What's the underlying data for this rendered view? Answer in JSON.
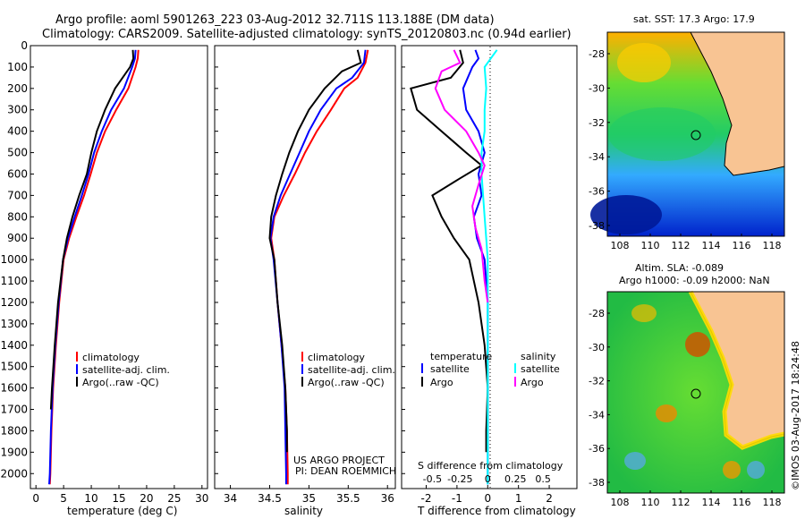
{
  "title": {
    "line1": "Argo profile: aoml 5901263_223 03-Aug-2012 32.711S 113.188E (DM data)",
    "line2": "Climatology: CARS2009. Satellite-adjusted climatology: synTS_20120803.nc (0.94d earlier)"
  },
  "credit": "©IMOS 03-Aug-2017 18:24:48",
  "colors": {
    "climatology": "#ff0000",
    "satellite": "#0000ff",
    "argo": "#000000",
    "salinity_satellite": "#00ffff",
    "salinity_argo": "#ff00ff"
  },
  "chart_data": [
    {
      "type": "line",
      "id": "temperature",
      "xlabel": "temperature (deg C)",
      "xlim": [
        -1,
        31
      ],
      "ylim": [
        2070,
        0
      ],
      "xticks": [
        0,
        5,
        10,
        15,
        20,
        25,
        30
      ],
      "yticks": [
        0,
        100,
        200,
        300,
        400,
        500,
        600,
        700,
        800,
        900,
        1000,
        1100,
        1200,
        1300,
        1400,
        1500,
        1600,
        1700,
        1800,
        1900,
        2000
      ],
      "legend": [
        "climatology",
        "satellite-adj. clim.",
        "Argo(..raw -QC)"
      ],
      "series": [
        {
          "name": "climatology",
          "color": "#ff0000",
          "points": [
            [
              18.5,
              20
            ],
            [
              18.4,
              60
            ],
            [
              18.0,
              100
            ],
            [
              16.7,
              200
            ],
            [
              14.5,
              300
            ],
            [
              12.5,
              400
            ],
            [
              11.0,
              500
            ],
            [
              9.9,
              600
            ],
            [
              8.7,
              700
            ],
            [
              7.3,
              800
            ],
            [
              6.0,
              900
            ],
            [
              5.0,
              1000
            ],
            [
              4.2,
              1200
            ],
            [
              3.6,
              1400
            ],
            [
              3.1,
              1600
            ],
            [
              2.8,
              1800
            ],
            [
              2.6,
              2000
            ],
            [
              2.5,
              2050
            ]
          ]
        },
        {
          "name": "satellite-adj. clim.",
          "color": "#0000ff",
          "points": [
            [
              18.0,
              20
            ],
            [
              17.9,
              60
            ],
            [
              17.4,
              100
            ],
            [
              15.9,
              200
            ],
            [
              13.6,
              300
            ],
            [
              11.9,
              400
            ],
            [
              10.5,
              500
            ],
            [
              9.5,
              600
            ],
            [
              8.3,
              700
            ],
            [
              7.0,
              800
            ],
            [
              5.8,
              900
            ],
            [
              4.9,
              1000
            ],
            [
              4.1,
              1200
            ],
            [
              3.5,
              1400
            ],
            [
              3.0,
              1600
            ],
            [
              2.7,
              1800
            ],
            [
              2.5,
              2000
            ],
            [
              2.4,
              2050
            ]
          ]
        },
        {
          "name": "Argo(..raw -QC)",
          "color": "#000000",
          "points": [
            [
              17.5,
              20
            ],
            [
              17.6,
              60
            ],
            [
              17.0,
              100
            ],
            [
              14.3,
              200
            ],
            [
              12.5,
              300
            ],
            [
              11.0,
              400
            ],
            [
              10.0,
              500
            ],
            [
              9.2,
              600
            ],
            [
              7.8,
              700
            ],
            [
              6.6,
              800
            ],
            [
              5.6,
              900
            ],
            [
              4.9,
              1000
            ],
            [
              4.0,
              1200
            ],
            [
              3.4,
              1400
            ],
            [
              2.9,
              1600
            ],
            [
              2.7,
              1700
            ]
          ]
        }
      ]
    },
    {
      "type": "line",
      "id": "salinity",
      "xlabel": "salinity",
      "xlim": [
        33.8,
        36.1
      ],
      "ylim": [
        2070,
        0
      ],
      "xticks": [
        34,
        34.5,
        35,
        35.5,
        36
      ],
      "legend": [
        "climatology",
        "satellite-adj. clim.",
        "Argo(..raw -QC)"
      ],
      "series": [
        {
          "name": "climatology",
          "color": "#ff0000",
          "points": [
            [
              35.75,
              20
            ],
            [
              35.72,
              80
            ],
            [
              35.62,
              150
            ],
            [
              35.45,
              200
            ],
            [
              35.28,
              300
            ],
            [
              35.1,
              400
            ],
            [
              34.95,
              500
            ],
            [
              34.82,
              600
            ],
            [
              34.68,
              700
            ],
            [
              34.56,
              800
            ],
            [
              34.52,
              900
            ],
            [
              34.56,
              1000
            ],
            [
              34.6,
              1200
            ],
            [
              34.65,
              1400
            ],
            [
              34.7,
              1600
            ],
            [
              34.72,
              1800
            ],
            [
              34.73,
              2000
            ],
            [
              34.73,
              2050
            ]
          ]
        },
        {
          "name": "satellite-adj. clim.",
          "color": "#0000ff",
          "points": [
            [
              35.72,
              20
            ],
            [
              35.7,
              80
            ],
            [
              35.55,
              150
            ],
            [
              35.35,
              200
            ],
            [
              35.15,
              300
            ],
            [
              35.0,
              400
            ],
            [
              34.88,
              500
            ],
            [
              34.76,
              600
            ],
            [
              34.64,
              700
            ],
            [
              34.55,
              800
            ],
            [
              34.51,
              900
            ],
            [
              34.55,
              1000
            ],
            [
              34.6,
              1200
            ],
            [
              34.65,
              1400
            ],
            [
              34.69,
              1600
            ],
            [
              34.7,
              1800
            ],
            [
              34.71,
              2000
            ],
            [
              34.71,
              2050
            ]
          ]
        },
        {
          "name": "Argo(..raw -QC)",
          "color": "#000000",
          "points": [
            [
              35.62,
              20
            ],
            [
              35.66,
              80
            ],
            [
              35.42,
              120
            ],
            [
              35.2,
              200
            ],
            [
              35.0,
              300
            ],
            [
              34.86,
              400
            ],
            [
              34.75,
              500
            ],
            [
              34.66,
              600
            ],
            [
              34.58,
              700
            ],
            [
              34.52,
              800
            ],
            [
              34.5,
              900
            ],
            [
              34.56,
              1000
            ],
            [
              34.6,
              1200
            ],
            [
              34.66,
              1400
            ],
            [
              34.7,
              1600
            ],
            [
              34.72,
              1800
            ],
            [
              34.72,
              1900
            ]
          ]
        }
      ]
    },
    {
      "type": "line",
      "id": "difference",
      "xlabel": "T difference from climatology",
      "xlabel_top": "S difference from climatology",
      "xlim": [
        -2.8,
        2.9
      ],
      "xticks": [
        -2,
        -1,
        0,
        1,
        2
      ],
      "sticks": [
        "-0.5",
        "-0.25",
        "0",
        "0.25",
        "0.5"
      ],
      "legend_titles": [
        "temperature",
        "salinity"
      ],
      "legend": [
        "satellite",
        "Argo",
        "satellite",
        "Argo"
      ],
      "series": [
        {
          "name": "satellite",
          "color": "#0000ff",
          "points": [
            [
              -0.4,
              20
            ],
            [
              -0.3,
              60
            ],
            [
              -0.5,
              100
            ],
            [
              -0.8,
              200
            ],
            [
              -0.7,
              300
            ],
            [
              -0.3,
              400
            ],
            [
              -0.1,
              500
            ],
            [
              -0.3,
              600
            ],
            [
              -0.2,
              700
            ],
            [
              -0.45,
              800
            ],
            [
              -0.35,
              900
            ],
            [
              -0.1,
              1000
            ],
            [
              0.0,
              1200
            ],
            [
              0.0,
              2050
            ]
          ]
        },
        {
          "name": "Argo",
          "color": "#000000",
          "points": [
            [
              -0.9,
              20
            ],
            [
              -0.8,
              80
            ],
            [
              -1.2,
              150
            ],
            [
              -2.5,
              200
            ],
            [
              -2.3,
              300
            ],
            [
              -1.5,
              400
            ],
            [
              -0.7,
              500
            ],
            [
              -0.2,
              560
            ],
            [
              -0.9,
              620
            ],
            [
              -1.8,
              700
            ],
            [
              -1.5,
              800
            ],
            [
              -1.1,
              900
            ],
            [
              -0.6,
              1000
            ],
            [
              -0.3,
              1200
            ],
            [
              -0.1,
              1400
            ],
            [
              0.0,
              1600
            ],
            [
              -0.05,
              1800
            ],
            [
              -0.05,
              1900
            ]
          ]
        },
        {
          "name": "salinity satellite",
          "color": "#00ffff",
          "points": [
            [
              0.3,
              20
            ],
            [
              0.1,
              60
            ],
            [
              -0.1,
              100
            ],
            [
              -0.05,
              200
            ],
            [
              -0.1,
              300
            ],
            [
              -0.1,
              400
            ],
            [
              -0.2,
              500
            ],
            [
              -0.2,
              600
            ],
            [
              -0.15,
              700
            ],
            [
              -0.1,
              800
            ],
            [
              -0.05,
              900
            ],
            [
              0.0,
              1000
            ],
            [
              0.0,
              2050
            ]
          ]
        },
        {
          "name": "salinity Argo",
          "color": "#ff00ff",
          "points": [
            [
              -1.1,
              20
            ],
            [
              -0.9,
              80
            ],
            [
              -1.5,
              120
            ],
            [
              -1.7,
              200
            ],
            [
              -1.4,
              300
            ],
            [
              -0.7,
              400
            ],
            [
              -0.3,
              500
            ],
            [
              -0.1,
              560
            ],
            [
              -0.3,
              650
            ],
            [
              -0.5,
              750
            ],
            [
              -0.4,
              850
            ],
            [
              -0.2,
              950
            ],
            [
              -0.1,
              1100
            ],
            [
              0.0,
              1200
            ]
          ]
        }
      ]
    }
  ],
  "maps": [
    {
      "title": "sat. SST: 17.3 Argo: 17.9",
      "xticks": [
        "108",
        "110",
        "112",
        "114",
        "116",
        "118"
      ],
      "yticks": [
        "-28",
        "-30",
        "-32",
        "-34",
        "-36",
        "-38"
      ]
    },
    {
      "title": "Altim. SLA: -0.089",
      "subtitle": "Argo h1000: -0.09 h2000: NaN",
      "xticks": [
        "108",
        "110",
        "112",
        "114",
        "116",
        "118"
      ],
      "yticks": [
        "-28",
        "-30",
        "-32",
        "-34",
        "-36",
        "-38"
      ]
    }
  ],
  "annotations": {
    "project": "US ARGO PROJECT",
    "pi": "PI: DEAN ROEMMICH"
  }
}
